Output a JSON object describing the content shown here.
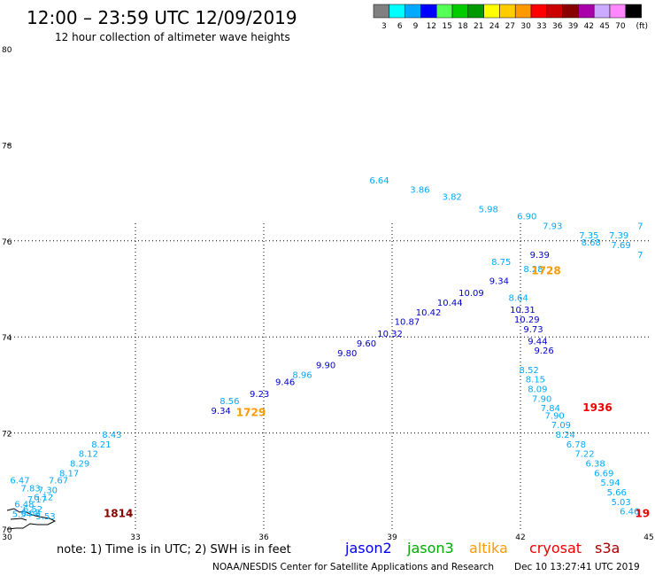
{
  "header": {
    "title": "12:00 – 23:59 UTC 12/09/2019",
    "subtitle": "12 hour collection of altimeter wave heights"
  },
  "colorbar": {
    "unit": "(ft)",
    "entries": [
      {
        "label": "3",
        "color": "#808080"
      },
      {
        "label": "6",
        "color": "#00ffff"
      },
      {
        "label": "9",
        "color": "#00aaff"
      },
      {
        "label": "12",
        "color": "#0000ff"
      },
      {
        "label": "15",
        "color": "#55ff55"
      },
      {
        "label": "18",
        "color": "#00cc00"
      },
      {
        "label": "21",
        "color": "#009900"
      },
      {
        "label": "24",
        "color": "#ffff00"
      },
      {
        "label": "27",
        "color": "#ffcc00"
      },
      {
        "label": "30",
        "color": "#ff9900"
      },
      {
        "label": "33",
        "color": "#ff0000"
      },
      {
        "label": "36",
        "color": "#cc0000"
      },
      {
        "label": "39",
        "color": "#880000"
      },
      {
        "label": "42",
        "color": "#aa00aa"
      },
      {
        "label": "45",
        "color": "#ccaaff"
      },
      {
        "label": "70",
        "color": "#ff88ff"
      },
      {
        "label": "",
        "color": "#000000"
      }
    ]
  },
  "footer": {
    "note": "note:  1) Time is in UTC;  2) SWH is in feet",
    "satellites": [
      {
        "name": "jason2",
        "color": "#0000ee"
      },
      {
        "name": "jason3",
        "color": "#00aa00"
      },
      {
        "name": "altika",
        "color": "#ff9900"
      },
      {
        "name": "cryosat",
        "color": "#ee0000"
      },
      {
        "name": "s3a",
        "color": "#aa0000"
      }
    ],
    "credit": "NOAA/NESDIS Center for Satellite Applications and Research",
    "timestamp": "Dec 10 13:27:41 UTC 2019"
  },
  "chart_data": {
    "type": "scatter",
    "x_ticks": [
      "30",
      "33",
      "36",
      "39",
      "42",
      "45"
    ],
    "y_ticks": [
      "70",
      "72",
      "74",
      "76",
      "78",
      "80"
    ],
    "xlim": [
      30,
      45
    ],
    "ylim": [
      70,
      80
    ],
    "grid": true,
    "time_labels": [
      {
        "text": "1814",
        "x": 32.6,
        "y": 70.25,
        "color": "#880000"
      },
      {
        "text": "1729",
        "x": 35.7,
        "y": 72.35,
        "color": "#ff9900"
      },
      {
        "text": "1728",
        "x": 42.6,
        "y": 75.3,
        "color": "#ff9900"
      },
      {
        "text": "1936",
        "x": 43.8,
        "y": 72.45,
        "color": "#ee0000"
      },
      {
        "text": "19",
        "x": 44.85,
        "y": 70.25,
        "color": "#ee0000"
      }
    ],
    "series": [
      {
        "name": "jason3",
        "color": "#00aaff",
        "points": [
          {
            "x": 32.2,
            "y": 71.7,
            "v": "8.21"
          },
          {
            "x": 31.9,
            "y": 71.5,
            "v": "8.12"
          },
          {
            "x": 31.7,
            "y": 71.3,
            "v": "8.29"
          },
          {
            "x": 31.45,
            "y": 71.1,
            "v": "8.17"
          },
          {
            "x": 31.2,
            "y": 70.95,
            "v": "7.67"
          },
          {
            "x": 30.95,
            "y": 70.75,
            "v": "7.30"
          },
          {
            "x": 30.7,
            "y": 70.55,
            "v": "7.17"
          },
          {
            "x": 30.4,
            "y": 70.45,
            "v": "6.48"
          },
          {
            "x": 30.6,
            "y": 70.35,
            "v": "6.52"
          },
          {
            "x": 30.55,
            "y": 70.28,
            "v": "6.68"
          },
          {
            "x": 30.9,
            "y": 70.2,
            "v": "5.53"
          },
          {
            "x": 30.35,
            "y": 70.25,
            "v": "5.54"
          },
          {
            "x": 30.3,
            "y": 70.95,
            "v": "6.47"
          },
          {
            "x": 30.55,
            "y": 70.78,
            "v": "7.83"
          },
          {
            "x": 30.85,
            "y": 70.6,
            "v": "6.12"
          },
          {
            "x": 35.2,
            "y": 72.6,
            "v": "8.56"
          },
          {
            "x": 32.45,
            "y": 71.9,
            "v": "8.43"
          },
          {
            "x": 36.9,
            "y": 73.15,
            "v": "8.96"
          },
          {
            "x": 38.7,
            "y": 77.2,
            "v": "6.64"
          },
          {
            "x": 39.65,
            "y": 77.0,
            "v": "3.86"
          },
          {
            "x": 40.4,
            "y": 76.85,
            "v": "3.82"
          },
          {
            "x": 41.25,
            "y": 76.6,
            "v": "5.98"
          },
          {
            "x": 42.15,
            "y": 76.45,
            "v": "6.90"
          },
          {
            "x": 42.75,
            "y": 76.25,
            "v": "7.93"
          },
          {
            "x": 43.6,
            "y": 76.05,
            "v": "7.35"
          },
          {
            "x": 44.3,
            "y": 76.05,
            "v": "7.39"
          },
          {
            "x": 43.65,
            "y": 75.9,
            "v": "8.68"
          },
          {
            "x": 44.35,
            "y": 75.85,
            "v": "7.69"
          },
          {
            "x": 41.55,
            "y": 75.5,
            "v": "8.75"
          },
          {
            "x": 42.3,
            "y": 75.35,
            "v": "8.28"
          },
          {
            "x": 44.8,
            "y": 76.25,
            "v": "7"
          },
          {
            "x": 44.8,
            "y": 75.65,
            "v": "7"
          },
          {
            "x": 41.95,
            "y": 74.75,
            "v": "8.64"
          },
          {
            "x": 42.2,
            "y": 73.25,
            "v": "8.52"
          },
          {
            "x": 42.35,
            "y": 73.05,
            "v": "8.15"
          },
          {
            "x": 42.4,
            "y": 72.85,
            "v": "8.09"
          },
          {
            "x": 42.5,
            "y": 72.65,
            "v": "7.90"
          },
          {
            "x": 42.7,
            "y": 72.45,
            "v": "7.84"
          },
          {
            "x": 42.8,
            "y": 72.3,
            "v": "7.90"
          },
          {
            "x": 42.95,
            "y": 72.1,
            "v": "7.09"
          },
          {
            "x": 43.05,
            "y": 71.9,
            "v": "8.24"
          },
          {
            "x": 43.3,
            "y": 71.7,
            "v": "6.78"
          },
          {
            "x": 43.5,
            "y": 71.5,
            "v": "7.22"
          },
          {
            "x": 43.75,
            "y": 71.3,
            "v": "6.38"
          },
          {
            "x": 43.95,
            "y": 71.1,
            "v": "6.69"
          },
          {
            "x": 44.1,
            "y": 70.9,
            "v": "5.94"
          },
          {
            "x": 44.25,
            "y": 70.7,
            "v": "5.66"
          },
          {
            "x": 44.35,
            "y": 70.5,
            "v": "5.03"
          },
          {
            "x": 44.55,
            "y": 70.3,
            "v": "6.46"
          }
        ]
      },
      {
        "name": "jason2",
        "color": "#0000cc",
        "points": [
          {
            "x": 35.0,
            "y": 72.4,
            "v": "9.34"
          },
          {
            "x": 35.9,
            "y": 72.75,
            "v": "9.23"
          },
          {
            "x": 36.5,
            "y": 73.0,
            "v": "9.46"
          },
          {
            "x": 37.45,
            "y": 73.35,
            "v": "9.90"
          },
          {
            "x": 37.95,
            "y": 73.6,
            "v": "9.80"
          },
          {
            "x": 38.4,
            "y": 73.8,
            "v": "9.60"
          },
          {
            "x": 38.95,
            "y": 74.0,
            "v": "10.32"
          },
          {
            "x": 39.35,
            "y": 74.25,
            "v": "10.87"
          },
          {
            "x": 39.85,
            "y": 74.45,
            "v": "10.42"
          },
          {
            "x": 40.35,
            "y": 74.65,
            "v": "10.44"
          },
          {
            "x": 40.85,
            "y": 74.85,
            "v": "10.09"
          },
          {
            "x": 41.5,
            "y": 75.1,
            "v": "9.34"
          },
          {
            "x": 42.45,
            "y": 75.65,
            "v": "9.39"
          },
          {
            "x": 42.05,
            "y": 74.5,
            "v": "10.31"
          },
          {
            "x": 42.15,
            "y": 74.3,
            "v": "10.29"
          },
          {
            "x": 42.3,
            "y": 74.1,
            "v": "9.73"
          },
          {
            "x": 42.4,
            "y": 73.85,
            "v": "9.44"
          },
          {
            "x": 42.55,
            "y": 73.65,
            "v": "9.26"
          }
        ]
      }
    ]
  }
}
